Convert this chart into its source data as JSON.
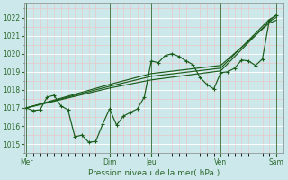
{
  "xlabel": "Pression niveau de la mer( hPa )",
  "ylim": [
    1014.5,
    1022.8
  ],
  "yticks": [
    1015,
    1016,
    1017,
    1018,
    1019,
    1020,
    1021,
    1022
  ],
  "bg_color": "#cce8eb",
  "grid_color_major": "#ffffff",
  "grid_color_minor": "#e8c8c8",
  "line_color": "#1a5c1a",
  "tick_color": "#2d6a2d",
  "xtick_labels": [
    "Mer",
    "",
    "Dim",
    "Jeu",
    "",
    "Ven",
    "",
    "Sam"
  ],
  "xtick_positions": [
    0,
    5,
    12,
    18,
    23,
    28,
    32,
    36
  ],
  "vline_positions": [
    0,
    12,
    18,
    28,
    36
  ],
  "vline_color": "#4a7a4a",
  "xlim": [
    -0.3,
    37
  ],
  "series": [
    [
      0,
      1017.0,
      1,
      1016.85,
      2,
      1016.9,
      3,
      1017.6,
      4,
      1017.7,
      5,
      1017.1,
      6,
      1016.9,
      7,
      1015.4,
      8,
      1015.5,
      9,
      1015.1,
      10,
      1015.15,
      11,
      1016.1,
      12,
      1016.95,
      13,
      1016.05,
      14,
      1016.55,
      15,
      1016.75,
      16,
      1016.95,
      17,
      1017.6,
      18,
      1019.6,
      19,
      1019.5,
      20,
      1019.9,
      21,
      1020.0,
      22,
      1019.85,
      23,
      1019.6,
      24,
      1019.4,
      25,
      1018.7,
      26,
      1018.3,
      27,
      1018.05,
      28,
      1018.95,
      29,
      1019.0,
      30,
      1019.2,
      31,
      1019.65,
      32,
      1019.6,
      33,
      1019.35,
      34,
      1019.7,
      35,
      1021.85,
      36,
      1022.15
    ],
    [
      0,
      1017.0,
      12,
      1018.1,
      18,
      1018.55,
      28,
      1019.05,
      35,
      1021.8,
      36,
      1022.0
    ],
    [
      0,
      1017.0,
      12,
      1018.2,
      18,
      1018.75,
      28,
      1019.2,
      35,
      1021.9,
      36,
      1022.1
    ],
    [
      0,
      1017.0,
      12,
      1018.3,
      18,
      1018.9,
      28,
      1019.35,
      35,
      1021.7,
      36,
      1021.85
    ]
  ]
}
